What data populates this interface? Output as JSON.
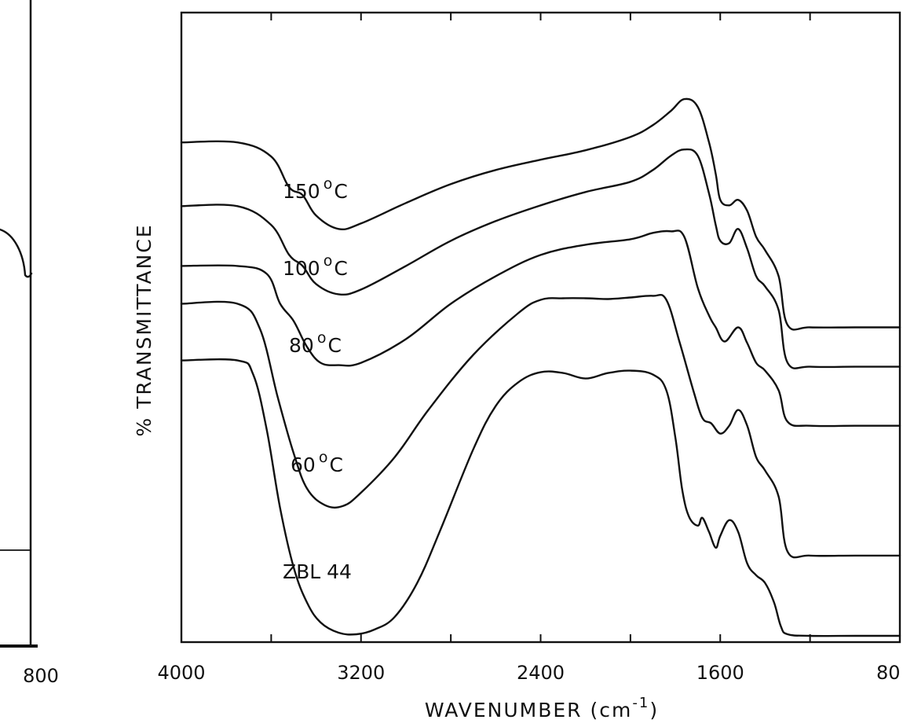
{
  "left_panel": {
    "tick_label": "800"
  },
  "chart_data": {
    "type": "line",
    "xlabel": "WAVENUMBER (cm",
    "xlabel_sup": "-1",
    "xlabel_suffix": ")",
    "ylabel": "% TRANSMITTANCE",
    "x_ticks": [
      "4000",
      "3200",
      "2400",
      "1600",
      "80"
    ],
    "xlim": [
      4000,
      800
    ],
    "x_reversed": true,
    "y_ticks_shown": false,
    "grid": false,
    "legend": "none (labels placed on curves)",
    "series": [
      {
        "name": "150 °C",
        "label_main": "150",
        "label_deg": "o",
        "label_unit": "C",
        "x": [
          4000,
          3750,
          3600,
          3520,
          3460,
          3400,
          3300,
          3200,
          3000,
          2800,
          2600,
          2400,
          2200,
          2000,
          1900,
          1820,
          1760,
          1700,
          1650,
          1620,
          1600,
          1560,
          1520,
          1480,
          1440,
          1400,
          1340,
          1300,
          1200,
          1000,
          800
        ],
        "y": [
          58.5,
          58.5,
          56.7,
          52.8,
          51.8,
          49.2,
          47.5,
          48.2,
          50.8,
          53.2,
          55.0,
          56.3,
          57.5,
          59.2,
          60.7,
          62.5,
          64.0,
          63.0,
          58.5,
          54.5,
          51.2,
          50.5,
          51.2,
          49.8,
          46.5,
          44.8,
          41.5,
          35.3,
          35.0,
          35.0,
          35.0
        ]
      },
      {
        "name": "100 °C",
        "label_main": "100",
        "label_deg": "o",
        "label_unit": "C",
        "x": [
          4000,
          3750,
          3600,
          3520,
          3460,
          3400,
          3300,
          3200,
          3000,
          2800,
          2600,
          2400,
          2200,
          2000,
          1900,
          1820,
          1760,
          1700,
          1650,
          1620,
          1600,
          1560,
          1520,
          1480,
          1440,
          1400,
          1340,
          1300,
          1200,
          1000,
          800
        ],
        "y": [
          50.4,
          50.4,
          48.0,
          44.2,
          42.8,
          40.5,
          39.2,
          39.8,
          42.8,
          46.0,
          48.5,
          50.5,
          52.2,
          53.5,
          55.0,
          56.8,
          57.6,
          56.8,
          52.0,
          48.0,
          46.0,
          45.7,
          47.5,
          45.0,
          41.5,
          40.2,
          37.2,
          30.5,
          30.0,
          30.0,
          30.0
        ]
      },
      {
        "name": "80 °C",
        "label_main": "80",
        "label_deg": "o",
        "label_unit": "C",
        "x": [
          4000,
          3750,
          3620,
          3560,
          3500,
          3440,
          3380,
          3300,
          3200,
          3000,
          2800,
          2600,
          2400,
          2200,
          2000,
          1900,
          1820,
          1760,
          1700,
          1650,
          1620,
          1580,
          1520,
          1480,
          1440,
          1400,
          1340,
          1300,
          1200,
          1000,
          800
        ],
        "y": [
          42.8,
          42.8,
          41.8,
          38.0,
          35.8,
          32.5,
          30.5,
          30.2,
          30.5,
          33.5,
          38.0,
          41.5,
          44.2,
          45.5,
          46.2,
          47.0,
          47.2,
          46.5,
          40.0,
          36.5,
          35.0,
          33.2,
          35.0,
          33.0,
          30.5,
          29.5,
          27.0,
          23.0,
          22.5,
          22.5,
          22.5
        ]
      },
      {
        "name": "60 °C",
        "label_main": "60",
        "label_deg": "o",
        "label_unit": "C",
        "x": [
          4000,
          3750,
          3650,
          3570,
          3500,
          3440,
          3360,
          3280,
          3200,
          3050,
          2900,
          2700,
          2500,
          2400,
          2300,
          2200,
          2100,
          2000,
          1900,
          1840,
          1780,
          1720,
          1680,
          1640,
          1600,
          1560,
          1520,
          1480,
          1440,
          1400,
          1340,
          1300,
          1200,
          1000,
          800
        ],
        "y": [
          38.0,
          38.0,
          34.8,
          26.0,
          19.0,
          14.5,
          12.4,
          12.3,
          14.0,
          18.5,
          24.5,
          31.5,
          36.8,
          38.5,
          38.7,
          38.7,
          38.6,
          38.8,
          39.0,
          38.5,
          33.0,
          27.0,
          23.5,
          22.8,
          21.5,
          22.5,
          24.5,
          22.5,
          18.5,
          16.8,
          13.5,
          6.5,
          6.0,
          6.0,
          6.0
        ]
      },
      {
        "name": "ZBL 44",
        "label_main": "ZBL 44",
        "label_deg": "",
        "label_unit": "",
        "x": [
          4000,
          3750,
          3680,
          3620,
          3560,
          3500,
          3440,
          3380,
          3300,
          3220,
          3140,
          3050,
          2950,
          2850,
          2700,
          2600,
          2500,
          2400,
          2300,
          2200,
          2100,
          2000,
          1900,
          1840,
          1800,
          1770,
          1740,
          1700,
          1680,
          1650,
          1620,
          1600,
          1560,
          1520,
          1480,
          1440,
          1400,
          1360,
          1330,
          1300,
          1200,
          1000,
          800
        ],
        "y": [
          30.8,
          30.8,
          29.0,
          22.0,
          12.0,
          4.5,
          0.0,
          -2.5,
          -3.8,
          -4.0,
          -3.4,
          -1.8,
          2.5,
          9.0,
          19.5,
          25.0,
          28.0,
          29.3,
          29.2,
          28.5,
          29.2,
          29.5,
          29.0,
          27.0,
          21.0,
          14.5,
          11.0,
          9.8,
          10.8,
          9.0,
          7.0,
          8.5,
          10.5,
          9.0,
          5.0,
          3.5,
          2.5,
          0.0,
          -3.0,
          -4.0,
          -4.2,
          -4.2,
          -4.2
        ]
      }
    ]
  }
}
